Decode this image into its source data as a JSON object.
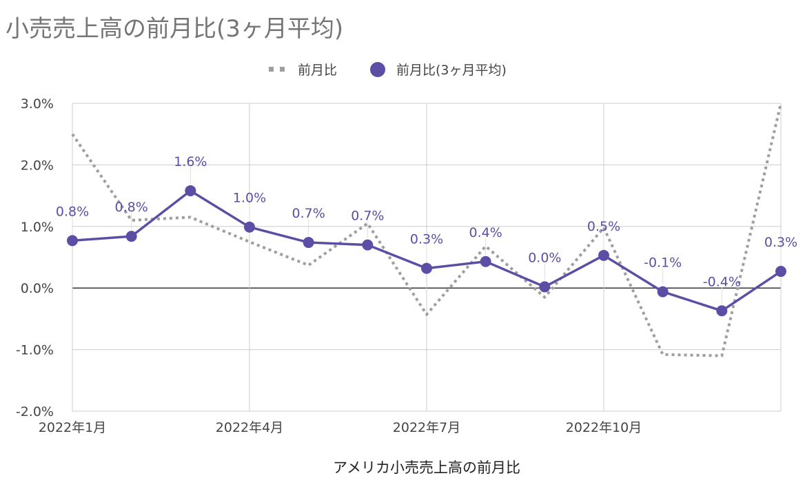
{
  "chart_data": {
    "type": "line",
    "title": "小売売上高の前月比(3ヶ月平均)",
    "xlabel": "アメリカ小売売上高の前月比",
    "ylabel": "",
    "ylim": [
      -2.0,
      3.0
    ],
    "y_ticks": [
      "-2.0%",
      "-1.0%",
      "0.0%",
      "1.0%",
      "2.0%",
      "3.0%"
    ],
    "y_tick_values": [
      -2,
      -1,
      0,
      1,
      2,
      3
    ],
    "x_tick_labels": [
      "2022年1月",
      "2022年4月",
      "2022年7月",
      "2022年10月"
    ],
    "x_tick_index": [
      0,
      3,
      6,
      9
    ],
    "grid": true,
    "legend_position": "top",
    "series": [
      {
        "name": "前月比",
        "style": "dotted",
        "color": "#9e9e9e",
        "values": [
          2.5,
          1.1,
          1.15,
          0.75,
          0.37,
          1.05,
          -0.43,
          0.68,
          -0.15,
          0.98,
          -1.08,
          -1.1,
          3.0
        ]
      },
      {
        "name": "前月比(3ヶ月平均)",
        "style": "solid-markers",
        "color": "#5d4ea5",
        "values": [
          0.77,
          0.84,
          1.58,
          0.99,
          0.74,
          0.7,
          0.32,
          0.43,
          0.02,
          0.53,
          -0.06,
          -0.37,
          0.27
        ],
        "labels": [
          "0.8%",
          "0.8%",
          "1.6%",
          "1.0%",
          "0.7%",
          "0.7%",
          "0.3%",
          "0.4%",
          "0.0%",
          "0.5%",
          "-0.1%",
          "-0.4%",
          "0.3%"
        ]
      }
    ]
  }
}
